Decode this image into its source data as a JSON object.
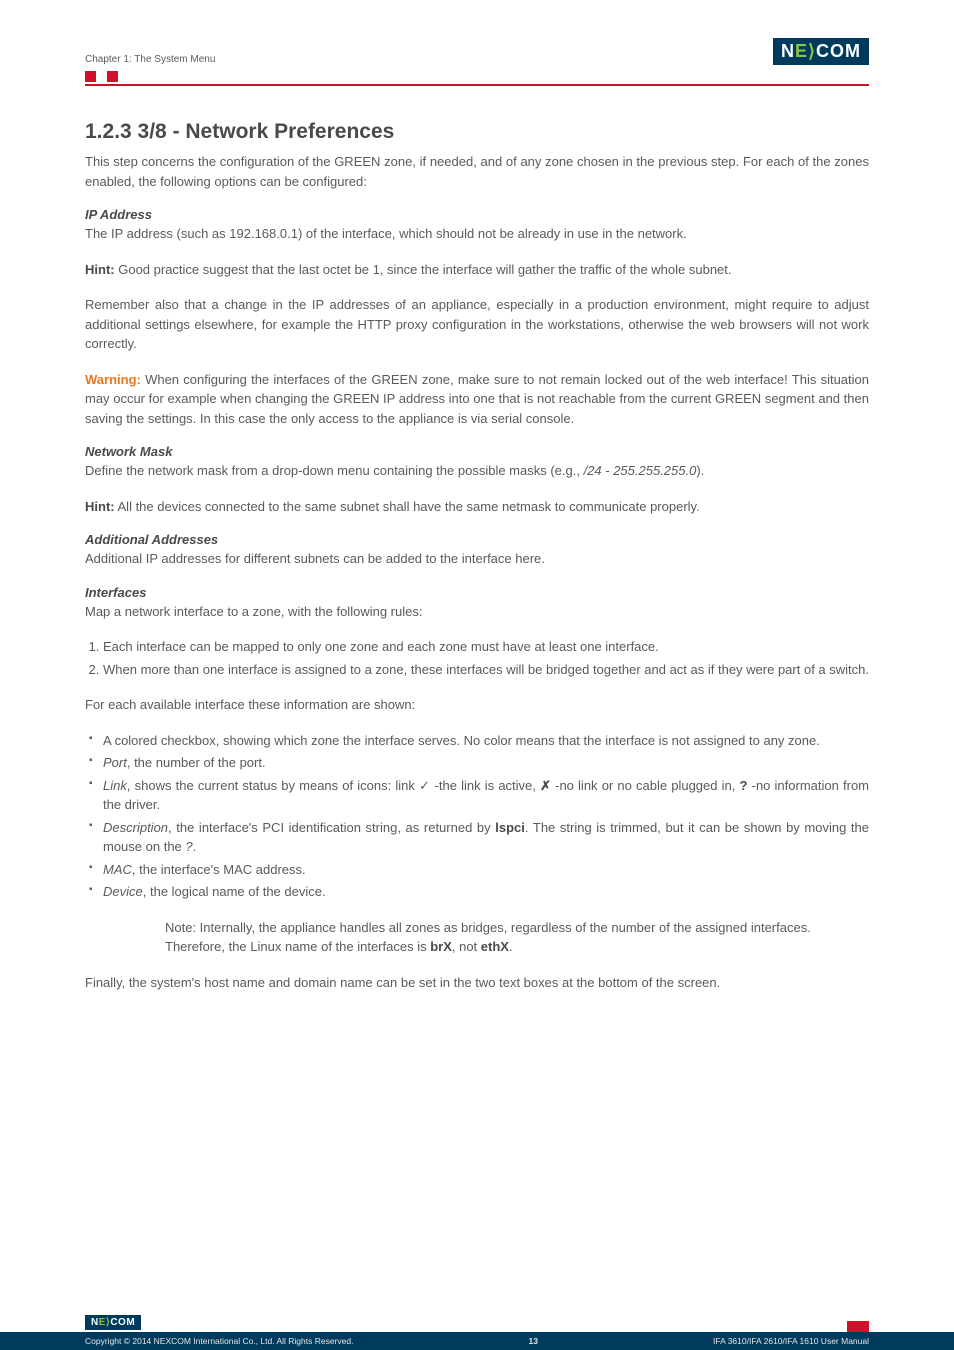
{
  "header": {
    "chapter": "Chapter 1: The System Menu",
    "logo_text_1": "N",
    "logo_text_2": "E",
    "logo_text_3": "COM"
  },
  "section": {
    "number_title": "1.2.3  3/8 - Network Preferences",
    "intro": "This step concerns the configuration of the GREEN zone, if needed, and of any zone chosen in the previous step. For each of the zones enabled, the following options can be configured:"
  },
  "ip_address": {
    "heading": "IP Address",
    "line1": "The IP address (such as 192.168.0.1) of the interface, which should not be already in use in the network.",
    "hint_label": "Hint:",
    "hint_text": " Good practice suggest that the last octet be 1, since the interface will gather the traffic of the whole subnet.",
    "remember": "Remember also that a change in the IP addresses of an appliance, especially in a production environment, might require to adjust additional settings elsewhere, for example the HTTP proxy configuration in the workstations, otherwise the web browsers will not work correctly.",
    "warn_label": "Warning:",
    "warn_text": " When configuring the interfaces of the GREEN zone, make sure to not remain locked out of the web interface! This situation may occur for example when changing the GREEN IP address into one that is not reachable from the current GREEN segment and then saving the settings. In this case the only access to the appliance is via serial console."
  },
  "netmask": {
    "heading": "Network Mask",
    "text_pre": "Define the network mask from a drop-down menu containing the possible masks (e.g., ",
    "text_em": "/24 - 255.255.255.0",
    "text_post": ").",
    "hint_label": "Hint:",
    "hint_text": " All the devices connected to the same subnet shall have the same netmask to communicate properly."
  },
  "additional": {
    "heading": "Additional Addresses",
    "text": "Additional IP addresses for different subnets can be added to the interface here."
  },
  "interfaces": {
    "heading": "Interfaces",
    "intro": "Map a network interface to a zone, with the following rules:",
    "rule1": "Each interface can be mapped to only one zone and each zone must have at least one interface.",
    "rule2": "When more than one interface is assigned to a zone, these interfaces will be bridged together and act as if they were part of a switch.",
    "info_intro": "For each available interface these information are shown:",
    "b1": "A colored checkbox, showing which zone the interface serves. No color means that the interface is not assigned to any zone.",
    "b2_em": "Port",
    "b2_post": ", the number of the port.",
    "b3_em": "Link",
    "b3_mid1": ", shows the current status by means of icons: link ✓ -the link is active, ",
    "b3_x": "✗",
    "b3_mid2": " -no link or no cable plugged in, ",
    "b3_q": "?",
    "b3_post": " -no information from the driver.",
    "b4_em": "Description",
    "b4_mid1": ", the interface's PCI identification string, as returned by ",
    "b4_bold": "lspci",
    "b4_mid2": ". The string is trimmed, but it can be shown by moving the mouse on the ",
    "b4_q": "?",
    "b4_post": ".",
    "b5_em": "MAC",
    "b5_post": ", the interface's MAC address.",
    "b6_em": "Device",
    "b6_post": ", the logical name of the device.",
    "note_pre": "Note: Internally, the appliance handles all zones as bridges, regardless of the number of the assigned interfaces. Therefore, the Linux name of the interfaces is ",
    "note_b1": "brX",
    "note_mid": ", not ",
    "note_b2": "ethX",
    "note_post": ".",
    "final": "Finally, the system's host name and domain name can be set in the two text boxes at the bottom of the screen."
  },
  "footer": {
    "logo": "NE COM",
    "copyright": "Copyright © 2014 NEXCOM International Co., Ltd. All Rights Reserved.",
    "page": "13",
    "manual": "IFA 3610/IFA 2610/IFA 1610 User Manual"
  }
}
